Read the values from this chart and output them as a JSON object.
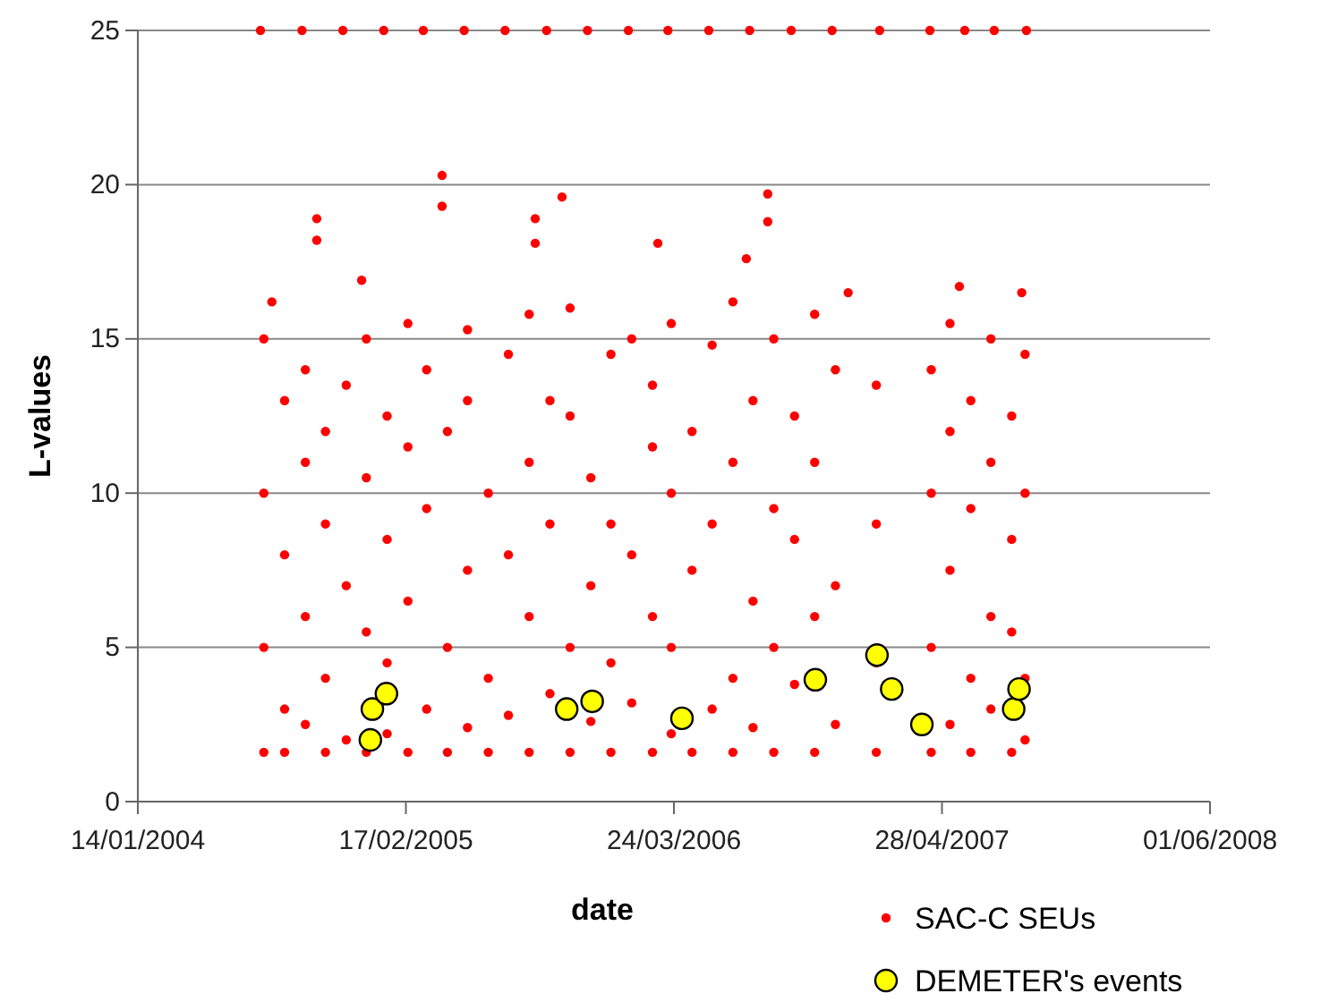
{
  "chart_data": {
    "type": "scatter",
    "xlabel": "date",
    "ylabel": "L-values",
    "xlim": [
      "2004-01-14",
      "2008-06-01"
    ],
    "xticks": [
      {
        "value": "2004-01-14",
        "label": "14/01/2004"
      },
      {
        "value": "2005-02-17",
        "label": "17/02/2005"
      },
      {
        "value": "2006-03-24",
        "label": "24/03/2006"
      },
      {
        "value": "2007-04-28",
        "label": "28/04/2007"
      },
      {
        "value": "2008-06-01",
        "label": "01/06/2008"
      }
    ],
    "ylim": [
      0,
      25
    ],
    "yticks": [
      0,
      5,
      10,
      15,
      20,
      25
    ],
    "grid": "y",
    "legend": "bottom right",
    "marker": "circle",
    "series": [
      {
        "name": "SAC-C SEUs",
        "color": "#ff0000",
        "x": [
          "2004-07-15",
          "2004-09-15",
          "2004-11-15",
          "2005-01-15",
          "2005-03-15",
          "2005-05-15",
          "2005-07-15",
          "2005-09-15",
          "2005-11-15",
          "2006-01-15",
          "2006-03-15",
          "2006-05-15",
          "2006-07-15",
          "2006-09-15",
          "2006-11-15",
          "2007-01-25",
          "2007-04-10",
          "2007-06-01",
          "2007-07-15",
          "2007-09-01",
          "2004-10-07",
          "2004-10-07",
          "2005-04-12",
          "2005-04-12",
          "2004-12-13",
          "2005-08-29",
          "2005-08-29",
          "2005-10-08",
          "2006-02-28",
          "2006-08-11",
          "2006-08-11",
          "2006-07-10",
          "2007-05-24",
          "2007-08-25",
          "2006-12-09",
          "2004-08-01",
          "2004-07-20",
          "2004-07-20",
          "2004-07-20",
          "2004-07-20",
          "2004-08-20",
          "2004-08-20",
          "2004-08-20",
          "2004-08-20",
          "2004-09-20",
          "2004-09-20",
          "2004-09-20",
          "2004-09-20",
          "2004-10-20",
          "2004-10-20",
          "2004-10-20",
          "2004-10-20",
          "2004-11-20",
          "2004-11-20",
          "2004-11-20",
          "2004-12-20",
          "2004-12-20",
          "2004-12-20",
          "2004-12-20",
          "2005-01-20",
          "2005-01-20",
          "2005-01-20",
          "2005-01-20",
          "2005-02-20",
          "2005-02-20",
          "2005-02-20",
          "2005-02-20",
          "2005-03-20",
          "2005-03-20",
          "2005-03-20",
          "2005-04-20",
          "2005-04-20",
          "2005-04-20",
          "2005-05-20",
          "2005-05-20",
          "2005-05-20",
          "2005-05-20",
          "2005-06-20",
          "2005-06-20",
          "2005-06-20",
          "2005-07-20",
          "2005-07-20",
          "2005-07-20",
          "2005-08-20",
          "2005-08-20",
          "2005-08-20",
          "2005-08-20",
          "2005-09-20",
          "2005-09-20",
          "2005-09-20",
          "2005-10-20",
          "2005-10-20",
          "2005-10-20",
          "2005-10-20",
          "2005-11-20",
          "2005-11-20",
          "2005-11-20",
          "2005-12-20",
          "2005-12-20",
          "2005-12-20",
          "2005-12-20",
          "2006-01-20",
          "2006-01-20",
          "2006-01-20",
          "2006-02-20",
          "2006-02-20",
          "2006-02-20",
          "2006-02-20",
          "2006-03-20",
          "2006-03-20",
          "2006-03-20",
          "2006-03-20",
          "2006-04-20",
          "2006-04-20",
          "2006-04-20",
          "2006-05-20",
          "2006-05-20",
          "2006-05-20",
          "2006-06-20",
          "2006-06-20",
          "2006-06-20",
          "2006-06-20",
          "2006-07-20",
          "2006-07-20",
          "2006-07-20",
          "2006-08-20",
          "2006-08-20",
          "2006-08-20",
          "2006-08-20",
          "2006-09-20",
          "2006-09-20",
          "2006-09-20",
          "2006-10-20",
          "2006-10-20",
          "2006-10-20",
          "2006-10-20",
          "2006-11-20",
          "2006-11-20",
          "2006-11-20",
          "2007-01-20",
          "2007-01-20",
          "2007-01-20",
          "2007-01-20",
          "2007-04-12",
          "2007-04-12",
          "2007-04-12",
          "2007-04-12",
          "2007-05-10",
          "2007-05-10",
          "2007-05-10",
          "2007-05-10",
          "2007-06-10",
          "2007-06-10",
          "2007-06-10",
          "2007-06-10",
          "2007-07-10",
          "2007-07-10",
          "2007-07-10",
          "2007-07-10",
          "2007-08-10",
          "2007-08-10",
          "2007-08-10",
          "2007-08-10",
          "2007-08-30",
          "2007-08-30",
          "2007-08-30",
          "2007-08-30"
        ],
        "values": [
          25,
          25,
          25,
          25,
          25,
          25,
          25,
          25,
          25,
          25,
          25,
          25,
          25,
          25,
          25,
          25,
          25,
          25,
          25,
          25,
          18.9,
          18.2,
          20.3,
          19.3,
          16.9,
          18.9,
          18.1,
          19.6,
          18.1,
          19.7,
          18.8,
          17.6,
          16.7,
          16.5,
          16.5,
          16.2,
          1.6,
          5,
          10,
          15,
          1.6,
          3,
          8,
          13,
          2.5,
          6,
          11,
          14,
          1.6,
          4,
          9,
          12,
          2,
          7,
          13.5,
          1.6,
          5.5,
          10.5,
          15,
          2.2,
          4.5,
          8.5,
          12.5,
          1.6,
          6.5,
          11.5,
          15.5,
          3,
          9.5,
          14,
          1.6,
          5,
          12,
          2.4,
          7.5,
          13,
          15.3,
          1.6,
          4,
          10,
          2.8,
          8,
          14.5,
          1.6,
          6,
          11,
          15.8,
          3.5,
          9,
          13,
          1.6,
          5,
          12.5,
          16,
          2.6,
          7,
          10.5,
          1.6,
          4.5,
          9,
          14.5,
          3.2,
          8,
          15,
          1.6,
          6,
          11.5,
          13.5,
          2.2,
          5,
          10,
          15.5,
          1.6,
          7.5,
          12,
          3,
          9,
          14.8,
          1.6,
          4,
          11,
          16.2,
          2.4,
          6.5,
          13,
          1.6,
          5,
          9.5,
          15,
          3.8,
          8.5,
          12.5,
          1.6,
          6,
          11,
          15.8,
          2.5,
          7,
          14,
          1.6,
          4.5,
          9,
          13.5,
          1.6,
          5,
          10,
          14,
          2.5,
          7.5,
          12,
          15.5,
          1.6,
          4,
          9.5,
          13,
          3,
          6,
          11,
          15,
          1.6,
          5.5,
          8.5,
          12.5,
          2,
          4,
          10,
          14.5
        ]
      },
      {
        "name": "DEMETER's events",
        "color": "#ffff00",
        "x": [
          "2004-12-26",
          "2004-12-29",
          "2005-01-19",
          "2005-10-15",
          "2005-11-22",
          "2006-04-05",
          "2006-10-21",
          "2007-01-21",
          "2007-02-12",
          "2007-03-29",
          "2007-08-13",
          "2007-08-21"
        ],
        "values": [
          2.0,
          3.0,
          3.5,
          3.0,
          3.25,
          2.7,
          3.95,
          4.75,
          3.65,
          2.5,
          3.0,
          3.65
        ]
      }
    ]
  }
}
